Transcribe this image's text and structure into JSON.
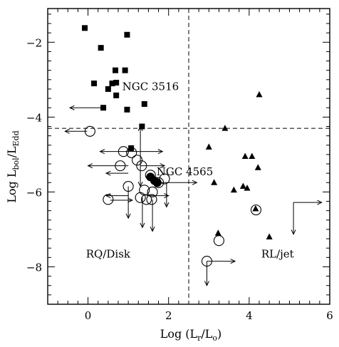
{
  "chart_data": {
    "type": "scatter",
    "xlabel": "Log (L_r/L_o)",
    "ylabel": "Log L_bol/L_Edd",
    "xlim": [
      -1,
      6
    ],
    "ylim": [
      -9,
      -1.1
    ],
    "x_ticks": [
      0,
      2,
      4,
      6
    ],
    "y_ticks": [
      -2,
      -4,
      -6,
      -8
    ],
    "x_minor_step": 0.25,
    "y_minor_step": 0.25,
    "grid": false,
    "reference_lines": [
      {
        "orientation": "vertical",
        "value": 2.5,
        "style": "dashed"
      },
      {
        "orientation": "horizontal",
        "value": -4.3,
        "style": "dashed"
      }
    ],
    "annotations": [
      {
        "text": "NGC 3516",
        "x": 0.85,
        "y": -3.28
      },
      {
        "text": "NGC 4565",
        "x": 1.7,
        "y": -5.55
      },
      {
        "text": "RQ/Disk",
        "x": -0.05,
        "y": -7.75
      },
      {
        "text": "RL/jet",
        "x": 4.3,
        "y": -7.75
      }
    ],
    "series": [
      {
        "marker": "filled-square",
        "points": [
          [
            -0.08,
            -1.62
          ],
          [
            0.97,
            -1.8
          ],
          [
            0.32,
            -2.15
          ],
          [
            0.68,
            -2.75
          ],
          [
            0.92,
            -2.75
          ],
          [
            0.15,
            -3.1
          ],
          [
            0.7,
            -3.08
          ],
          [
            0.6,
            -3.1
          ],
          [
            0.5,
            -3.25
          ],
          [
            0.7,
            -3.42
          ],
          [
            0.38,
            -3.75
          ],
          [
            0.97,
            -3.8
          ],
          [
            1.4,
            -3.65
          ],
          [
            1.34,
            -4.25
          ],
          [
            1.07,
            -4.83
          ]
        ]
      },
      {
        "marker": "filled-triangle",
        "points": [
          [
            4.25,
            -3.4
          ],
          [
            3.4,
            -4.3
          ],
          [
            3.0,
            -4.8
          ],
          [
            3.9,
            -5.05
          ],
          [
            4.07,
            -5.05
          ],
          [
            4.22,
            -5.35
          ],
          [
            3.13,
            -5.75
          ],
          [
            3.62,
            -5.95
          ],
          [
            3.85,
            -5.85
          ],
          [
            3.95,
            -5.9
          ],
          [
            4.16,
            -6.45
          ],
          [
            3.23,
            -7.1
          ],
          [
            4.5,
            -7.2
          ]
        ]
      },
      {
        "marker": "filled-circle",
        "points": [
          [
            1.55,
            -5.6
          ],
          [
            1.65,
            -5.7
          ],
          [
            1.72,
            -5.75
          ]
        ]
      },
      {
        "marker": "open-circle",
        "points": [
          [
            0.05,
            -4.38
          ],
          [
            0.88,
            -4.92
          ],
          [
            1.08,
            -4.95
          ],
          [
            1.22,
            -5.15
          ],
          [
            1.33,
            -5.3
          ],
          [
            0.8,
            -5.3
          ],
          [
            1.55,
            -5.55
          ],
          [
            1.75,
            -5.75
          ],
          [
            1.9,
            -5.65
          ],
          [
            1.0,
            -5.85
          ],
          [
            1.4,
            -5.95
          ],
          [
            1.6,
            -6.0
          ],
          [
            1.3,
            -6.15
          ],
          [
            1.45,
            -6.2
          ],
          [
            1.58,
            -6.2
          ],
          [
            0.5,
            -6.2
          ],
          [
            3.25,
            -7.3
          ],
          [
            2.95,
            -7.85
          ],
          [
            4.17,
            -6.48
          ]
        ]
      }
    ],
    "limit_arrows": [
      {
        "x": -0.02,
        "y": -4.38,
        "dx": -0.55,
        "dy": 0
      },
      {
        "x": 0.45,
        "y": -3.75,
        "dx": -0.9,
        "dy": 0
      },
      {
        "x": 1.05,
        "y": -4.92,
        "dx": -0.75,
        "dy": 0
      },
      {
        "x": 1.05,
        "y": -4.92,
        "dx": 0.8,
        "dy": 0
      },
      {
        "x": 1.3,
        "y": -5.0,
        "dx": 0,
        "dy": 0.75
      },
      {
        "x": 1.3,
        "y": -5.0,
        "dx": 0,
        "dy": -0.85
      },
      {
        "x": 1.0,
        "y": -5.3,
        "dx": -1.0,
        "dy": 0
      },
      {
        "x": 1.3,
        "y": -5.3,
        "dx": 0.6,
        "dy": 0
      },
      {
        "x": 1.0,
        "y": -5.5,
        "dx": -0.55,
        "dy": 0
      },
      {
        "x": 1.0,
        "y": -5.85,
        "dx": 0,
        "dy": -0.85
      },
      {
        "x": 1.0,
        "y": -6.1,
        "dx": -0.55,
        "dy": 0
      },
      {
        "x": 1.45,
        "y": -6.1,
        "dx": 0.55,
        "dy": 0
      },
      {
        "x": 1.35,
        "y": -6.15,
        "dx": 0,
        "dy": -0.8
      },
      {
        "x": 1.6,
        "y": -6.2,
        "dx": 0,
        "dy": -0.85
      },
      {
        "x": 1.75,
        "y": -5.75,
        "dx": 0.95,
        "dy": 0
      },
      {
        "x": 1.95,
        "y": -5.75,
        "dx": 0,
        "dy": -0.65
      },
      {
        "x": 0.55,
        "y": -6.22,
        "dx": 0.55,
        "dy": 0
      },
      {
        "x": 2.95,
        "y": -7.85,
        "dx": 0.7,
        "dy": 0
      },
      {
        "x": 2.95,
        "y": -7.85,
        "dx": 0,
        "dy": -0.65
      },
      {
        "x": 5.1,
        "y": -6.28,
        "dx": 0.7,
        "dy": 0
      },
      {
        "x": 5.1,
        "y": -6.28,
        "dx": 0,
        "dy": -0.85
      }
    ]
  }
}
